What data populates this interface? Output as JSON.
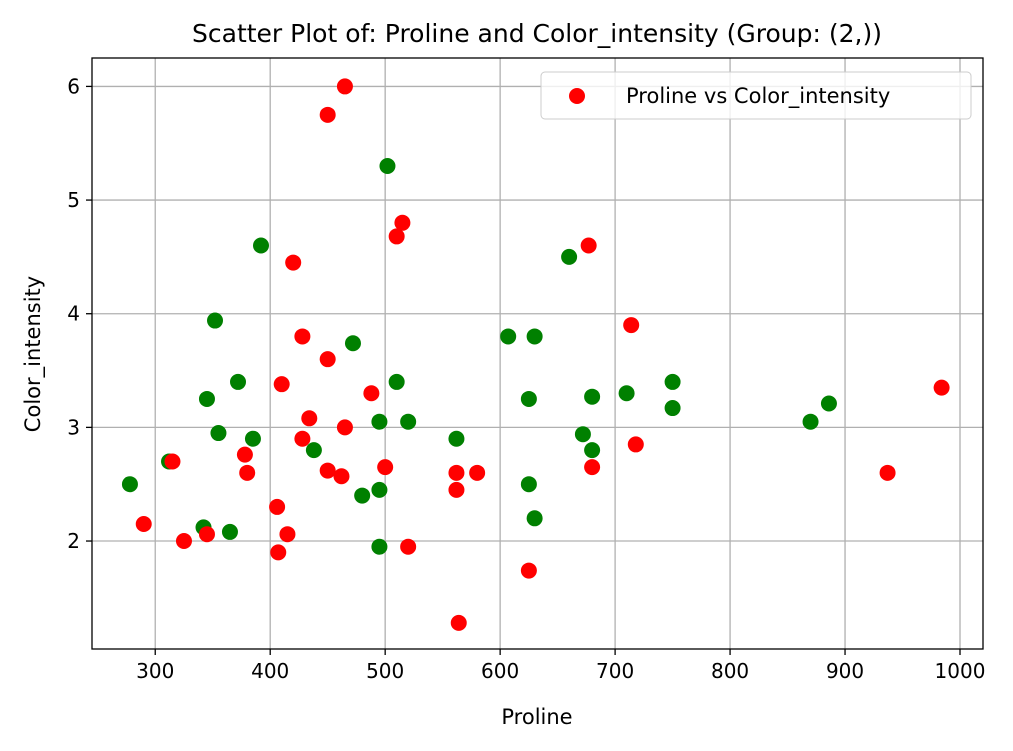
{
  "chart_data": {
    "type": "scatter",
    "title": "Scatter Plot of: Proline and Color_intensity (Group: (2,))",
    "xlabel": "Proline",
    "ylabel": "Color_intensity",
    "xlim": [
      245,
      1020
    ],
    "ylim": [
      1.05,
      6.25
    ],
    "xticks": [
      300,
      400,
      500,
      600,
      700,
      800,
      900,
      1000
    ],
    "yticks": [
      2,
      3,
      4,
      5,
      6
    ],
    "grid": true,
    "legend": {
      "label": "Proline vs Color_intensity",
      "placement": "top-right"
    },
    "colors": {
      "red": "#ff0000",
      "green": "#008000",
      "grid": "#b0b0b0"
    },
    "series": [
      {
        "name": "green",
        "color": "#008000",
        "x": [
          278,
          312,
          342,
          345,
          352,
          355,
          365,
          372,
          385,
          392,
          438,
          472,
          480,
          495,
          495,
          495,
          502,
          510,
          520,
          562,
          607,
          625,
          625,
          630,
          630,
          660,
          672,
          680,
          680,
          710,
          750,
          750,
          870,
          886
        ],
        "y": [
          2.5,
          2.7,
          2.12,
          3.25,
          3.94,
          2.95,
          2.08,
          3.4,
          2.9,
          4.6,
          2.8,
          3.74,
          2.4,
          3.05,
          2.45,
          1.95,
          5.3,
          3.4,
          3.05,
          2.9,
          3.8,
          3.25,
          2.5,
          3.8,
          2.2,
          4.5,
          2.94,
          3.27,
          2.8,
          3.3,
          3.4,
          3.17,
          3.05,
          3.21
        ]
      },
      {
        "name": "red",
        "color": "#ff0000",
        "x": [
          290,
          315,
          325,
          345,
          378,
          380,
          406,
          407,
          410,
          415,
          420,
          428,
          428,
          434,
          450,
          450,
          450,
          462,
          465,
          465,
          488,
          500,
          510,
          515,
          520,
          562,
          562,
          564,
          580,
          625,
          677,
          680,
          714,
          718,
          937,
          984
        ],
        "y": [
          2.15,
          2.7,
          2.0,
          2.06,
          2.76,
          2.6,
          2.3,
          1.9,
          3.38,
          2.06,
          4.45,
          3.8,
          2.9,
          3.08,
          5.75,
          3.6,
          2.62,
          2.57,
          6.0,
          3.0,
          3.3,
          2.65,
          4.68,
          4.8,
          1.95,
          2.6,
          2.45,
          1.28,
          2.6,
          1.74,
          4.6,
          2.65,
          3.9,
          2.85,
          2.6,
          3.35
        ]
      }
    ]
  }
}
